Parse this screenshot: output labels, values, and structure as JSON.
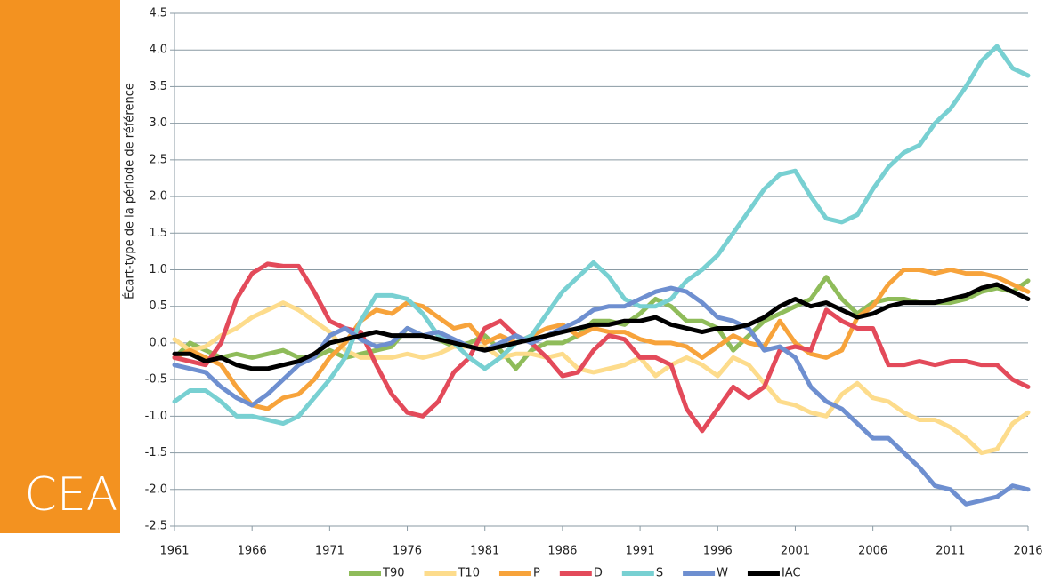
{
  "chart_data": {
    "type": "line",
    "side_label": "CEA",
    "ylabel": "Écart-type de la période de référence",
    "x": [
      1961,
      1962,
      1963,
      1964,
      1965,
      1966,
      1967,
      1968,
      1969,
      1970,
      1971,
      1972,
      1973,
      1974,
      1975,
      1976,
      1977,
      1978,
      1979,
      1980,
      1981,
      1982,
      1983,
      1984,
      1985,
      1986,
      1987,
      1988,
      1989,
      1990,
      1991,
      1992,
      1993,
      1994,
      1995,
      1996,
      1997,
      1998,
      1999,
      2000,
      2001,
      2002,
      2003,
      2004,
      2005,
      2006,
      2007,
      2008,
      2009,
      2010,
      2011,
      2012,
      2013,
      2014,
      2015,
      2016
    ],
    "xlim": [
      1961,
      2016
    ],
    "xticks": [
      1961,
      1966,
      1971,
      1976,
      1981,
      1986,
      1991,
      1996,
      2001,
      2006,
      2011,
      2016
    ],
    "ylim": [
      -2.5,
      4.5
    ],
    "yticks": [
      -2.5,
      {
        "value": -2,
        "label": "-2.0"
      },
      -1.5,
      {
        "value": -1,
        "label": "-1.0"
      },
      -0.5,
      {
        "value": 0,
        "label": "0.0"
      },
      0.5,
      {
        "value": 1,
        "label": "1.0"
      },
      1.5,
      {
        "value": 2,
        "label": "2.0"
      },
      2.5,
      {
        "value": 3,
        "label": "3.0"
      },
      3.5,
      {
        "value": 4,
        "label": "4.0"
      },
      4.5
    ],
    "grid": true,
    "legend": "bottom",
    "series": [
      {
        "name": "T90",
        "color": "#8fbc5a",
        "values": [
          -0.2,
          0.0,
          -0.1,
          -0.2,
          -0.15,
          -0.2,
          -0.15,
          -0.1,
          -0.2,
          -0.2,
          -0.1,
          -0.2,
          -0.15,
          -0.1,
          -0.05,
          0.2,
          0.1,
          0.05,
          -0.05,
          0.0,
          0.1,
          -0.1,
          -0.35,
          -0.1,
          0.0,
          0.0,
          0.1,
          0.3,
          0.3,
          0.25,
          0.4,
          0.6,
          0.5,
          0.3,
          0.3,
          0.2,
          -0.1,
          0.1,
          0.3,
          0.4,
          0.5,
          0.6,
          0.9,
          0.6,
          0.4,
          0.55,
          0.6,
          0.6,
          0.55,
          0.55,
          0.55,
          0.6,
          0.7,
          0.75,
          0.7,
          0.85
        ]
      },
      {
        "name": "T10",
        "color": "#fddc8c",
        "values": [
          0.05,
          -0.1,
          -0.05,
          0.1,
          0.2,
          0.35,
          0.45,
          0.55,
          0.45,
          0.3,
          0.15,
          -0.1,
          -0.2,
          -0.2,
          -0.2,
          -0.15,
          -0.2,
          -0.15,
          -0.05,
          -0.05,
          -0.05,
          -0.2,
          -0.15,
          -0.15,
          -0.2,
          -0.15,
          -0.35,
          -0.4,
          -0.35,
          -0.3,
          -0.2,
          -0.45,
          -0.3,
          -0.2,
          -0.3,
          -0.45,
          -0.2,
          -0.3,
          -0.55,
          -0.8,
          -0.85,
          -0.95,
          -1.0,
          -0.7,
          -0.55,
          -0.75,
          -0.8,
          -0.95,
          -1.05,
          -1.05,
          -1.15,
          -1.3,
          -1.5,
          -1.45,
          -1.1,
          -0.95
        ]
      },
      {
        "name": "P",
        "color": "#f7a33b",
        "values": [
          -0.2,
          -0.1,
          -0.2,
          -0.3,
          -0.6,
          -0.85,
          -0.9,
          -0.75,
          -0.7,
          -0.5,
          -0.2,
          0.0,
          0.3,
          0.45,
          0.4,
          0.55,
          0.5,
          0.35,
          0.2,
          0.25,
          0.0,
          0.1,
          0.0,
          0.1,
          0.2,
          0.25,
          0.1,
          0.2,
          0.15,
          0.15,
          0.05,
          0.0,
          0.0,
          -0.05,
          -0.2,
          -0.05,
          0.1,
          0.0,
          -0.05,
          0.3,
          0.0,
          -0.15,
          -0.2,
          -0.1,
          0.35,
          0.5,
          0.8,
          1.0,
          1.0,
          0.95,
          1.0,
          0.95,
          0.95,
          0.9,
          0.8,
          0.7
        ]
      },
      {
        "name": "D",
        "color": "#e34a5a",
        "values": [
          -0.2,
          -0.25,
          -0.3,
          0.0,
          0.6,
          0.95,
          1.08,
          1.05,
          1.05,
          0.7,
          0.3,
          0.2,
          0.15,
          -0.3,
          -0.7,
          -0.95,
          -1.0,
          -0.8,
          -0.4,
          -0.2,
          0.2,
          0.3,
          0.1,
          0.0,
          -0.2,
          -0.45,
          -0.4,
          -0.1,
          0.1,
          0.05,
          -0.2,
          -0.2,
          -0.3,
          -0.9,
          -1.2,
          -0.9,
          -0.6,
          -0.75,
          -0.6,
          -0.1,
          -0.05,
          -0.1,
          0.45,
          0.3,
          0.2,
          0.2,
          -0.3,
          -0.3,
          -0.25,
          -0.3,
          -0.25,
          -0.25,
          -0.3,
          -0.3,
          -0.5,
          -0.6
        ]
      },
      {
        "name": "S",
        "color": "#78d0d2",
        "values": [
          -0.8,
          -0.65,
          -0.65,
          -0.8,
          -1.0,
          -1.0,
          -1.05,
          -1.1,
          -1.0,
          -0.75,
          -0.5,
          -0.2,
          0.3,
          0.65,
          0.65,
          0.6,
          0.4,
          0.1,
          0.0,
          -0.2,
          -0.35,
          -0.2,
          0.0,
          0.1,
          0.4,
          0.7,
          0.9,
          1.1,
          0.9,
          0.6,
          0.5,
          0.5,
          0.6,
          0.85,
          1.0,
          1.2,
          1.5,
          1.8,
          2.1,
          2.3,
          2.35,
          2.0,
          1.7,
          1.65,
          1.75,
          2.1,
          2.4,
          2.6,
          2.7,
          3.0,
          3.2,
          3.5,
          3.85,
          4.05,
          3.75,
          3.65
        ]
      },
      {
        "name": "W",
        "color": "#6e8fd0",
        "values": [
          -0.3,
          -0.35,
          -0.4,
          -0.6,
          -0.75,
          -0.85,
          -0.7,
          -0.5,
          -0.3,
          -0.2,
          0.1,
          0.2,
          0.05,
          -0.05,
          0.0,
          0.2,
          0.1,
          0.15,
          0.05,
          -0.05,
          -0.1,
          0.0,
          0.1,
          0.0,
          0.1,
          0.2,
          0.3,
          0.45,
          0.5,
          0.5,
          0.6,
          0.7,
          0.75,
          0.7,
          0.55,
          0.35,
          0.3,
          0.2,
          -0.1,
          -0.05,
          -0.2,
          -0.6,
          -0.8,
          -0.9,
          -1.1,
          -1.3,
          -1.3,
          -1.5,
          -1.7,
          -1.95,
          -2.0,
          -2.2,
          -2.15,
          -2.1,
          -1.95,
          -2.0
        ]
      },
      {
        "name": "IAC",
        "color": "#000000",
        "values": [
          -0.15,
          -0.15,
          -0.25,
          -0.2,
          -0.3,
          -0.35,
          -0.35,
          -0.3,
          -0.25,
          -0.15,
          0.0,
          0.05,
          0.1,
          0.15,
          0.1,
          0.1,
          0.1,
          0.05,
          0.0,
          -0.05,
          -0.1,
          -0.05,
          0.0,
          0.05,
          0.1,
          0.15,
          0.2,
          0.25,
          0.25,
          0.3,
          0.3,
          0.35,
          0.25,
          0.2,
          0.15,
          0.2,
          0.2,
          0.25,
          0.35,
          0.5,
          0.6,
          0.5,
          0.55,
          0.45,
          0.35,
          0.4,
          0.5,
          0.55,
          0.55,
          0.55,
          0.6,
          0.65,
          0.75,
          0.8,
          0.7,
          0.6
        ]
      }
    ]
  }
}
